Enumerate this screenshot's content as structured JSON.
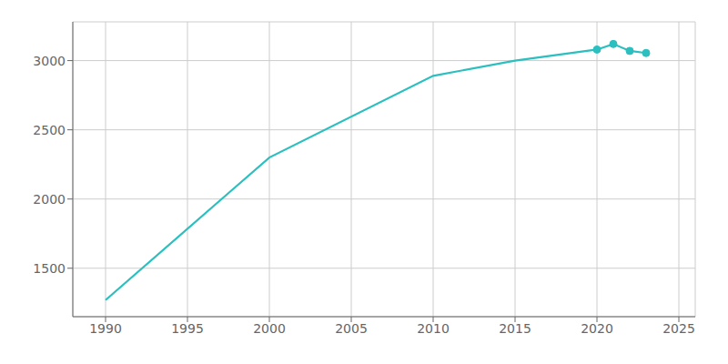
{
  "chart_data": {
    "type": "line",
    "x": [
      1990,
      2000,
      2010,
      2015,
      2020,
      2021,
      2022,
      2023
    ],
    "series": [
      {
        "type": "line",
        "color": "#2bbfbf",
        "values": [
          1270,
          2300,
          2890,
          3000,
          3080,
          3120,
          3070,
          3055
        ]
      },
      {
        "type": "scatter",
        "marker": "circle",
        "color": "#2bbfbf",
        "values": [
          null,
          null,
          null,
          null,
          3080,
          3120,
          3070,
          3055
        ]
      }
    ],
    "xlim": [
      1988,
      2026
    ],
    "ylim": [
      1150,
      3280
    ],
    "xticks": [
      1990,
      1995,
      2000,
      2005,
      2010,
      2015,
      2020,
      2025
    ],
    "yticks": [
      1500,
      2000,
      2500,
      3000
    ],
    "grid": true
  }
}
